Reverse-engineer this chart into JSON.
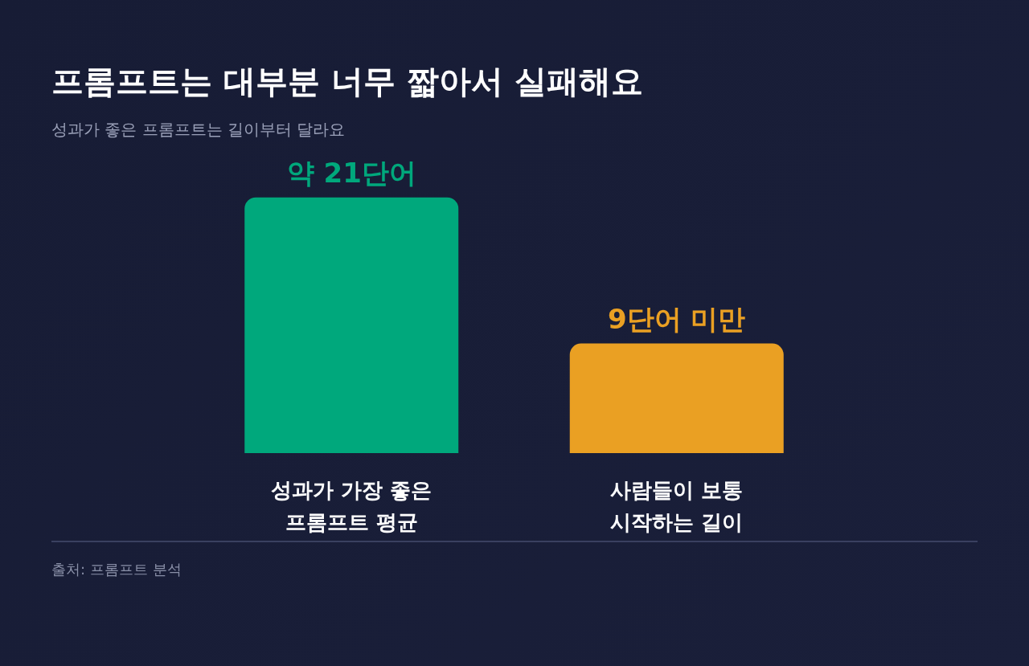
{
  "chart_data": {
    "type": "bar",
    "title": "프롬프트는 대부분 너무 짧아서 실패해요",
    "subtitle": "성과가 좋은 프롬프트는 길이부터 달라요",
    "categories": [
      "성과가 가장 좋은\n프롬프트 평균",
      "사람들이 보통\n시작하는 길이"
    ],
    "values": [
      21,
      9
    ],
    "colors": [
      "#00a87c",
      "#eaa023"
    ],
    "value_labels": [
      "약 21단어",
      "9단어 미만"
    ],
    "annotations": [
      "출처: 프롬프트 분석"
    ]
  }
}
